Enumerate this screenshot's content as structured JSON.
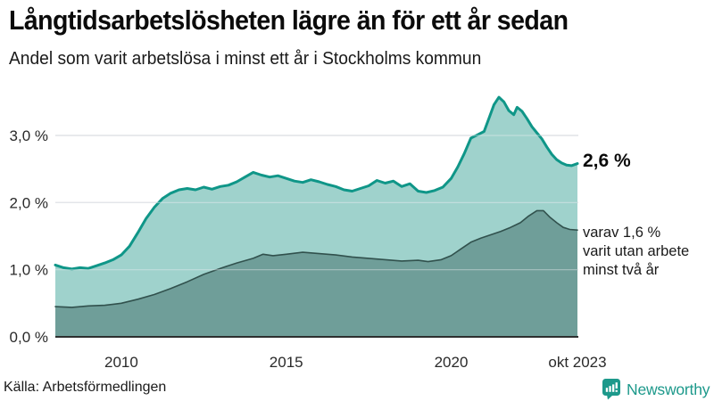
{
  "header": {
    "title": "Långtidsarbetslösheten lägre än för ett år sedan",
    "subtitle": "Andel som varit arbetslösa i minst ett år i Stockholms kommun"
  },
  "annotations": {
    "latest_value": "2,6 %",
    "secondary_line1": "varav 1,6 %",
    "secondary_line2": "varit utan arbete",
    "secondary_line3": "minst två år"
  },
  "footer": {
    "source": "Källa: Arbetsförmedlingen",
    "brand": "Newsworthy"
  },
  "colors": {
    "line_primary": "#0f9688",
    "fill_primary": "#9fd2cc",
    "line_secondary": "#31514d",
    "fill_secondary": "#6f9e99",
    "gridline": "#dcdee2",
    "baseline": "#2d2f2f",
    "brand_teal": "#1d998b"
  },
  "chart_data": {
    "type": "area",
    "title": "Långtidsarbetslösheten lägre än för ett år sedan",
    "subtitle": "Andel som varit arbetslösa i minst ett år i Stockholms kommun",
    "xlabel": "",
    "ylabel": "",
    "x_domain": [
      2008,
      2023.83
    ],
    "ylim": [
      0,
      3.7
    ],
    "grid": true,
    "yticks": [
      {
        "value": 0,
        "label": "0,0 %"
      },
      {
        "value": 1,
        "label": "1,0 %"
      },
      {
        "value": 2,
        "label": "2,0 %"
      },
      {
        "value": 3,
        "label": "3,0 %"
      }
    ],
    "xticks": [
      {
        "value": 2010,
        "label": "2010"
      },
      {
        "value": 2015,
        "label": "2015"
      },
      {
        "value": 2020,
        "label": "2020"
      },
      {
        "value": 2023.83,
        "label": "okt 2023"
      }
    ],
    "series": [
      {
        "name": "Andel arbetslösa minst ett år",
        "color": "#0f9688",
        "fill": "#9fd2cc",
        "stroke_width": 3,
        "x": [
          2008.0,
          2008.25,
          2008.5,
          2008.75,
          2009.0,
          2009.25,
          2009.5,
          2009.75,
          2010.0,
          2010.25,
          2010.5,
          2010.75,
          2011.0,
          2011.25,
          2011.5,
          2011.75,
          2012.0,
          2012.25,
          2012.5,
          2012.75,
          2013.0,
          2013.25,
          2013.5,
          2013.75,
          2014.0,
          2014.25,
          2014.5,
          2014.75,
          2015.0,
          2015.25,
          2015.5,
          2015.75,
          2016.0,
          2016.25,
          2016.5,
          2016.75,
          2017.0,
          2017.25,
          2017.5,
          2017.75,
          2018.0,
          2018.25,
          2018.5,
          2018.75,
          2019.0,
          2019.25,
          2019.5,
          2019.75,
          2020.0,
          2020.2,
          2020.4,
          2020.6,
          2020.8,
          2021.0,
          2021.15,
          2021.3,
          2021.45,
          2021.6,
          2021.75,
          2021.9,
          2022.0,
          2022.15,
          2022.3,
          2022.45,
          2022.6,
          2022.75,
          2022.9,
          2023.05,
          2023.2,
          2023.35,
          2023.5,
          2023.65,
          2023.83
        ],
        "values": [
          1.07,
          1.03,
          1.01,
          1.03,
          1.02,
          1.06,
          1.1,
          1.15,
          1.22,
          1.35,
          1.55,
          1.76,
          1.93,
          2.06,
          2.14,
          2.19,
          2.21,
          2.19,
          2.23,
          2.2,
          2.24,
          2.26,
          2.31,
          2.38,
          2.45,
          2.41,
          2.38,
          2.4,
          2.36,
          2.32,
          2.3,
          2.34,
          2.31,
          2.27,
          2.24,
          2.19,
          2.17,
          2.21,
          2.25,
          2.33,
          2.29,
          2.32,
          2.24,
          2.28,
          2.17,
          2.15,
          2.18,
          2.23,
          2.36,
          2.53,
          2.73,
          2.96,
          3.01,
          3.06,
          3.26,
          3.46,
          3.57,
          3.5,
          3.37,
          3.31,
          3.42,
          3.36,
          3.25,
          3.13,
          3.04,
          2.95,
          2.83,
          2.72,
          2.64,
          2.59,
          2.56,
          2.55,
          2.58
        ]
      },
      {
        "name": "varav utan arbete minst två år",
        "color": "#31514d",
        "fill": "#6f9e99",
        "stroke_width": 1.6,
        "x": [
          2008.0,
          2008.5,
          2009.0,
          2009.5,
          2010.0,
          2010.5,
          2011.0,
          2011.5,
          2012.0,
          2012.5,
          2013.0,
          2013.5,
          2014.0,
          2014.3,
          2014.6,
          2015.0,
          2015.5,
          2016.0,
          2016.5,
          2017.0,
          2017.5,
          2018.0,
          2018.5,
          2019.0,
          2019.3,
          2019.7,
          2020.0,
          2020.3,
          2020.6,
          2020.9,
          2021.2,
          2021.5,
          2021.8,
          2022.1,
          2022.35,
          2022.6,
          2022.8,
          2023.0,
          2023.2,
          2023.4,
          2023.6,
          2023.83
        ],
        "values": [
          0.45,
          0.44,
          0.46,
          0.47,
          0.5,
          0.56,
          0.63,
          0.72,
          0.82,
          0.93,
          1.02,
          1.1,
          1.17,
          1.23,
          1.21,
          1.23,
          1.26,
          1.24,
          1.22,
          1.19,
          1.17,
          1.15,
          1.13,
          1.14,
          1.12,
          1.15,
          1.21,
          1.31,
          1.41,
          1.47,
          1.52,
          1.57,
          1.63,
          1.7,
          1.8,
          1.88,
          1.88,
          1.78,
          1.7,
          1.63,
          1.6,
          1.59
        ]
      }
    ],
    "latest_labels": {
      "primary": "2,6 %",
      "secondary": "varav 1,6 % varit utan arbete minst två år"
    }
  }
}
